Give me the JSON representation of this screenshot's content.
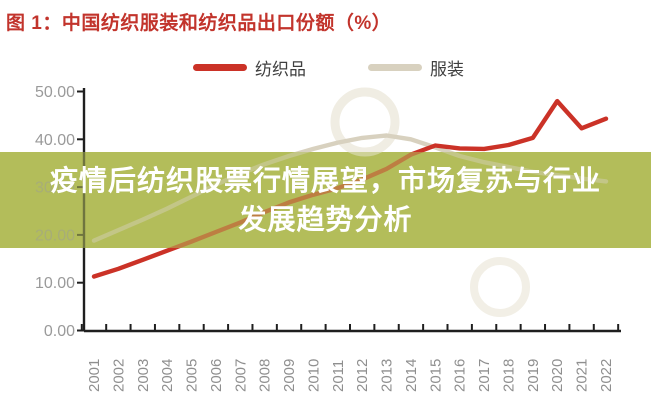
{
  "figure": {
    "title": "图 1：中国纺织服装和纺织品出口份额（%）",
    "title_color": "#c2342c"
  },
  "legend": [
    {
      "label": "纺织品",
      "color": "#cb3227"
    },
    {
      "label": "服装",
      "color": "#d8d1bf"
    }
  ],
  "overlay": {
    "line1": "疫情后纺织股票行情展望，市场复苏与行业",
    "line2": "发展趋势分析",
    "bg": "#b3bd5a",
    "text_color": "#ffffff"
  },
  "axis": {
    "color": "#1f1f1f",
    "tick_label_color": "#9a9a9a",
    "yticks": [
      "0.00",
      "10.00",
      "20.00",
      "30.00",
      "40.00",
      "50.00"
    ],
    "ytick_values": [
      0,
      10,
      20,
      30,
      40,
      50
    ]
  },
  "chart_data": {
    "type": "line",
    "x": [
      "2001",
      "2002",
      "2003",
      "2004",
      "2005",
      "2006",
      "2007",
      "2008",
      "2009",
      "2010",
      "2011",
      "2012",
      "2013",
      "2014",
      "2015",
      "2016",
      "2017",
      "2018",
      "2019",
      "2020",
      "2021",
      "2022"
    ],
    "series": [
      {
        "name": "纺织品",
        "color": "#cb3227",
        "values": [
          11.3,
          12.9,
          14.8,
          16.7,
          18.6,
          20.6,
          22.6,
          24.8,
          26.8,
          28.4,
          29.8,
          31.6,
          33.8,
          36.8,
          38.7,
          38.1,
          38.0,
          38.8,
          40.3,
          48.0,
          42.3,
          44.3
        ]
      },
      {
        "name": "服装",
        "color": "#d8d1bf",
        "values": [
          18.8,
          21.0,
          23.2,
          25.5,
          28.0,
          30.5,
          32.8,
          34.8,
          36.5,
          38.0,
          39.3,
          40.3,
          40.8,
          40.0,
          38.3,
          36.5,
          35.2,
          34.2,
          33.2,
          32.5,
          31.8,
          31.2
        ]
      }
    ],
    "title": "中国纺织服装和纺织品出口份额（%）",
    "xlabel": "",
    "ylabel": "",
    "ylim": [
      0,
      50
    ],
    "grid": false,
    "legend_position": "top-center"
  }
}
